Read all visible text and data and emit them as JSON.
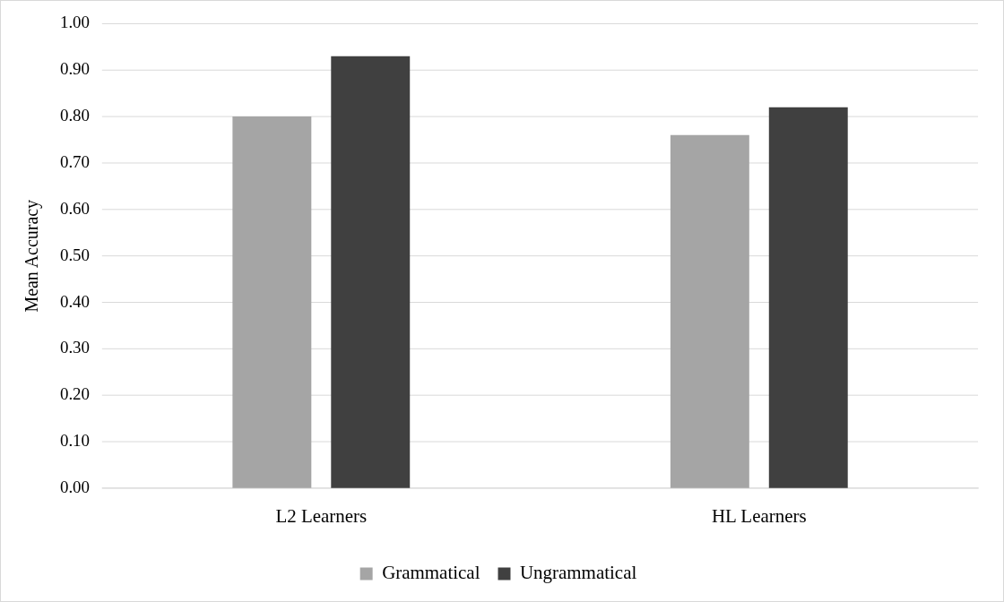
{
  "chart_data": {
    "type": "bar",
    "ylabel": "Mean Accuracy",
    "categories": [
      "L2 Learners",
      "HL Learners"
    ],
    "series": [
      {
        "name": "Grammatical",
        "color": "#a5a5a5",
        "values": [
          0.8,
          0.76
        ]
      },
      {
        "name": "Ungrammatical",
        "color": "#404040",
        "values": [
          0.93,
          0.82
        ]
      }
    ],
    "ylim": [
      0,
      1
    ],
    "yticks": [
      {
        "value": 0,
        "label": "0.00"
      },
      {
        "value": 0.1,
        "label": "0.10"
      },
      {
        "value": 0.2,
        "label": "0.20"
      },
      {
        "value": 0.3,
        "label": "0.30"
      },
      {
        "value": 0.4,
        "label": "0.40"
      },
      {
        "value": 0.5,
        "label": "0.50"
      },
      {
        "value": 0.6,
        "label": "0.60"
      },
      {
        "value": 0.7,
        "label": "0.70"
      },
      {
        "value": 0.8,
        "label": "0.80"
      },
      {
        "value": 0.9,
        "label": "0.90"
      },
      {
        "value": 1,
        "label": "1.00"
      }
    ],
    "grid": "y",
    "legend": "bottom"
  }
}
